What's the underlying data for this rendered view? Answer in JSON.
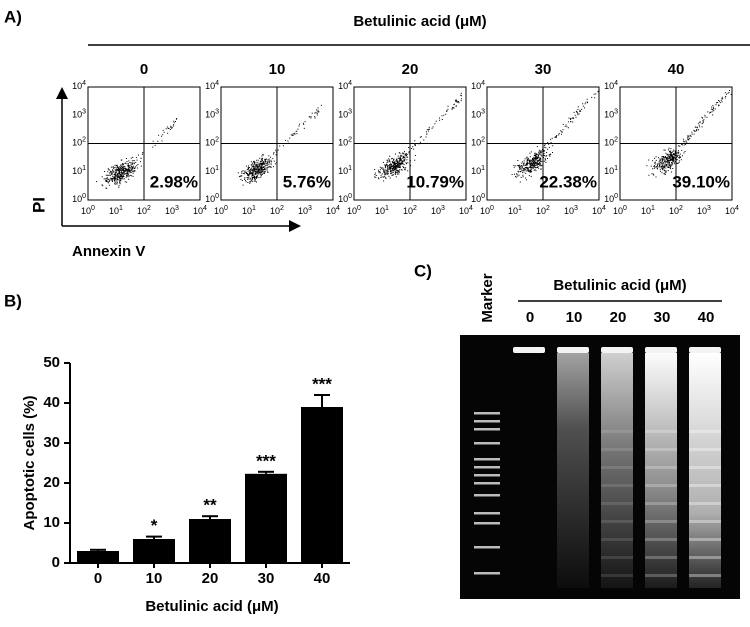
{
  "panel_a": {
    "label": "A)",
    "title": "Betulinic acid (μM)",
    "y_axis_label": "PI",
    "x_axis_label": "Annexin V",
    "ticks": [
      {
        "base": "10",
        "exp": "0"
      },
      {
        "base": "10",
        "exp": "1"
      },
      {
        "base": "10",
        "exp": "2"
      },
      {
        "base": "10",
        "exp": "3"
      },
      {
        "base": "10",
        "exp": "4"
      }
    ],
    "plots": [
      {
        "concentration": "0",
        "percent": "2.98%"
      },
      {
        "concentration": "10",
        "percent": "5.76%"
      },
      {
        "concentration": "20",
        "percent": "10.79%"
      },
      {
        "concentration": "30",
        "percent": "22.38%"
      },
      {
        "concentration": "40",
        "percent": "39.10%"
      }
    ]
  },
  "panel_b": {
    "label": "B)"
  },
  "chart_data": {
    "type": "bar",
    "x_label": "Betulinic acid (μM)",
    "y_label": "Apoptotic cells (%)",
    "categories": [
      "0",
      "10",
      "20",
      "30",
      "40"
    ],
    "values": [
      3.0,
      6.0,
      11.0,
      22.3,
      39.0
    ],
    "errors": [
      0.3,
      0.6,
      0.7,
      0.5,
      3.0
    ],
    "annotations": [
      null,
      "*",
      "**",
      "***",
      "***"
    ],
    "color": "#000000",
    "ylim": [
      0,
      50
    ],
    "yticks": [
      0,
      10,
      20,
      30,
      40,
      50
    ]
  },
  "panel_c": {
    "label": "C)",
    "marker_label": "Marker",
    "title": "Betulinic acid (μM)",
    "lanes": [
      "0",
      "10",
      "20",
      "30",
      "40"
    ]
  }
}
